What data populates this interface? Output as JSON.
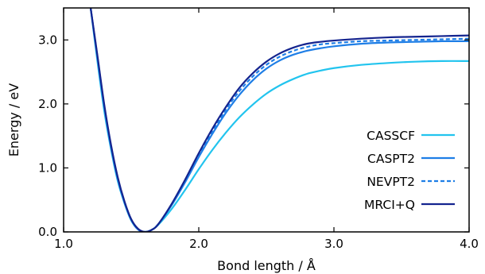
{
  "chart_data": {
    "type": "line",
    "xlabel": "Bond length / Å",
    "ylabel": "Energy / eV",
    "xlim": [
      1.0,
      4.0
    ],
    "ylim": [
      0.0,
      3.5
    ],
    "xticks": [
      1.0,
      2.0,
      3.0,
      4.0
    ],
    "yticks": [
      0.0,
      1.0,
      2.0,
      3.0
    ],
    "xtick_labels": [
      "1.0",
      "2.0",
      "3.0",
      "4.0"
    ],
    "ytick_labels": [
      "0.0",
      "1.0",
      "2.0",
      "3.0"
    ],
    "grid": false,
    "legend_position": "bottom-right",
    "series": [
      {
        "name": "CASSCF",
        "color": "#22c4ee",
        "dash": "solid",
        "x": [
          1.2,
          1.25,
          1.3,
          1.35,
          1.4,
          1.45,
          1.5,
          1.55,
          1.6,
          1.65,
          1.7,
          1.8,
          1.9,
          2.0,
          2.1,
          2.2,
          2.3,
          2.4,
          2.5,
          2.6,
          2.7,
          2.8,
          2.9,
          3.0,
          3.2,
          3.4,
          3.6,
          3.8,
          4.0
        ],
        "y": [
          3.5,
          2.67,
          1.9,
          1.3,
          0.8,
          0.45,
          0.18,
          0.04,
          0.0,
          0.03,
          0.11,
          0.36,
          0.66,
          0.98,
          1.28,
          1.55,
          1.79,
          1.99,
          2.16,
          2.29,
          2.39,
          2.47,
          2.52,
          2.56,
          2.61,
          2.64,
          2.66,
          2.67,
          2.67
        ]
      },
      {
        "name": "CASPT2",
        "color": "#1e7ee6",
        "dash": "solid",
        "x": [
          1.2,
          1.25,
          1.3,
          1.35,
          1.4,
          1.45,
          1.5,
          1.55,
          1.6,
          1.65,
          1.7,
          1.8,
          1.9,
          2.0,
          2.1,
          2.2,
          2.3,
          2.4,
          2.5,
          2.6,
          2.7,
          2.8,
          2.9,
          3.0,
          3.2,
          3.4,
          3.6,
          3.8,
          4.0
        ],
        "y": [
          3.5,
          2.72,
          1.96,
          1.33,
          0.83,
          0.46,
          0.19,
          0.04,
          0.0,
          0.03,
          0.12,
          0.42,
          0.78,
          1.17,
          1.53,
          1.86,
          2.14,
          2.37,
          2.55,
          2.68,
          2.77,
          2.83,
          2.87,
          2.9,
          2.94,
          2.96,
          2.97,
          2.98,
          2.98
        ]
      },
      {
        "name": "NEVPT2",
        "color": "#1e7ee6",
        "dash": "dashed",
        "x": [
          1.2,
          1.25,
          1.3,
          1.35,
          1.4,
          1.45,
          1.5,
          1.55,
          1.6,
          1.65,
          1.7,
          1.8,
          1.9,
          2.0,
          2.1,
          2.2,
          2.3,
          2.4,
          2.5,
          2.6,
          2.7,
          2.8,
          2.9,
          3.0,
          3.2,
          3.4,
          3.6,
          3.8,
          4.0
        ],
        "y": [
          3.5,
          2.74,
          1.98,
          1.35,
          0.84,
          0.47,
          0.19,
          0.04,
          0.0,
          0.03,
          0.12,
          0.43,
          0.8,
          1.2,
          1.57,
          1.91,
          2.2,
          2.43,
          2.61,
          2.74,
          2.83,
          2.89,
          2.93,
          2.95,
          2.98,
          2.99,
          3.0,
          3.01,
          3.02
        ]
      },
      {
        "name": "MRCI+Q",
        "color": "#14248f",
        "dash": "solid",
        "x": [
          1.2,
          1.25,
          1.3,
          1.35,
          1.4,
          1.45,
          1.5,
          1.55,
          1.6,
          1.65,
          1.7,
          1.8,
          1.9,
          2.0,
          2.1,
          2.2,
          2.3,
          2.4,
          2.5,
          2.6,
          2.7,
          2.8,
          2.9,
          3.0,
          3.2,
          3.4,
          3.6,
          3.8,
          4.0
        ],
        "y": [
          3.5,
          2.76,
          2.0,
          1.37,
          0.86,
          0.48,
          0.2,
          0.05,
          0.0,
          0.03,
          0.12,
          0.44,
          0.82,
          1.23,
          1.61,
          1.95,
          2.25,
          2.48,
          2.66,
          2.79,
          2.88,
          2.94,
          2.97,
          2.99,
          3.02,
          3.04,
          3.05,
          3.06,
          3.07
        ]
      }
    ]
  }
}
